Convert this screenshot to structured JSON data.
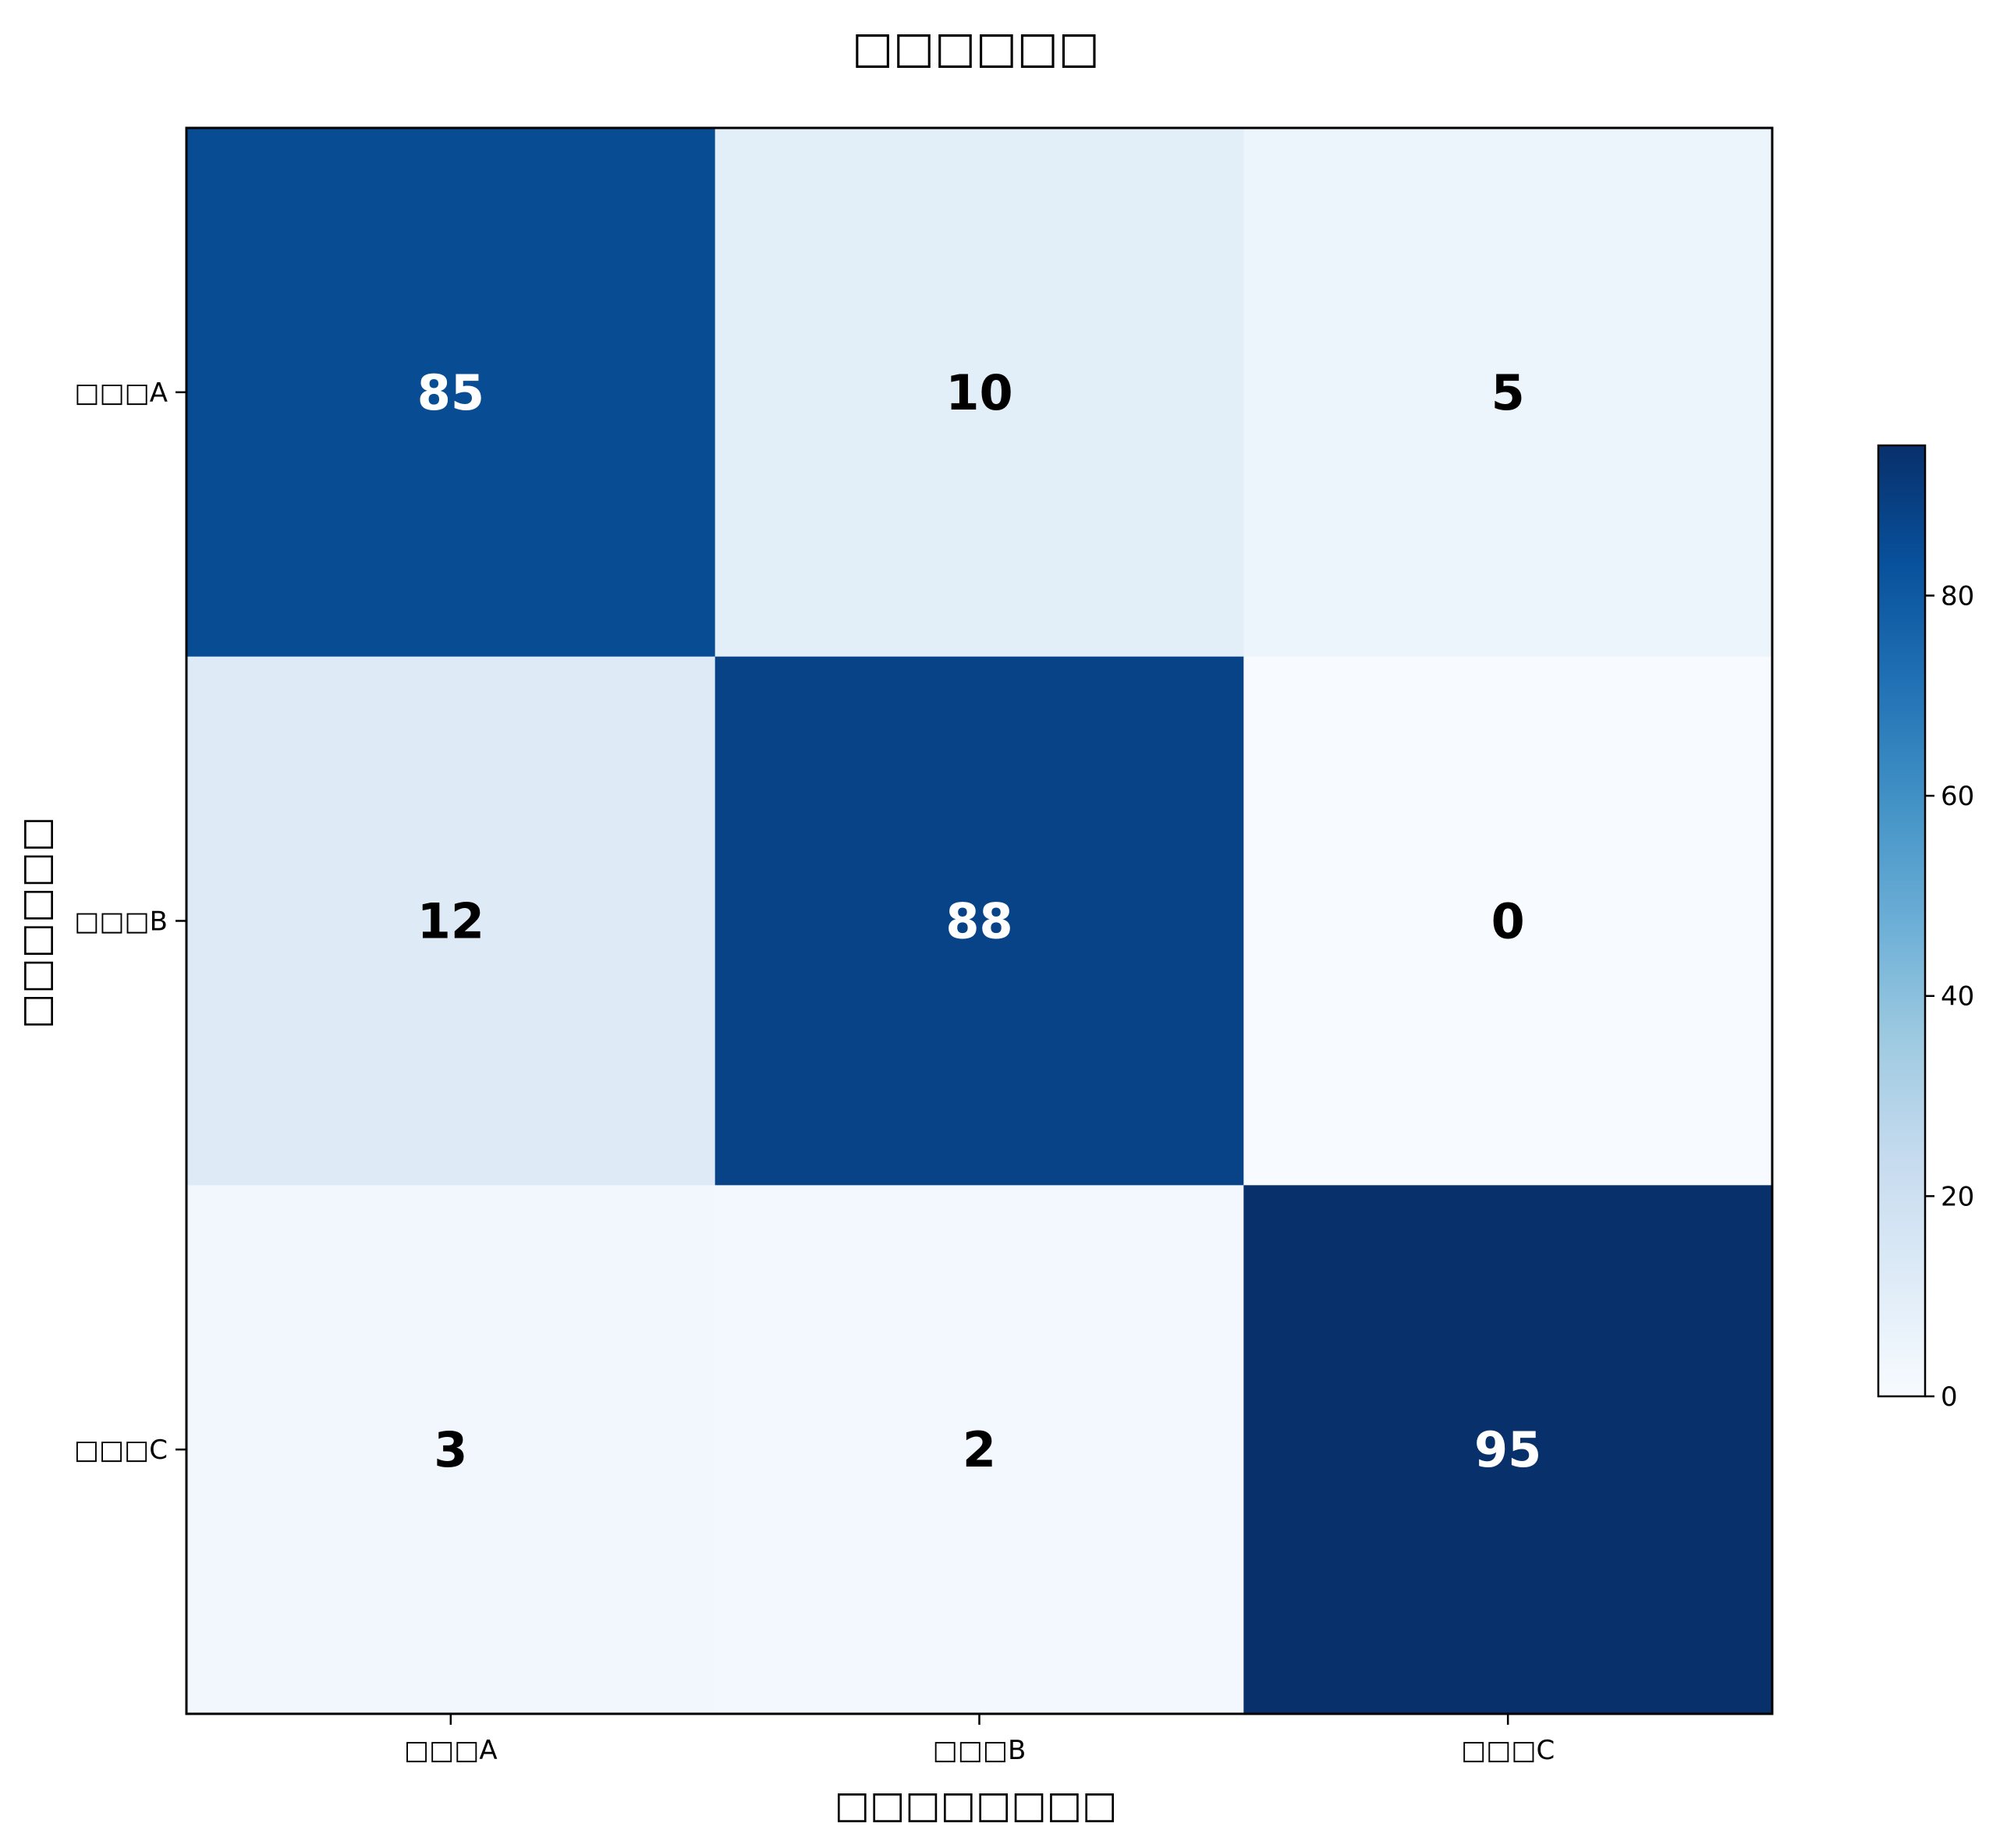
{
  "chart_data": {
    "type": "heatmap",
    "title": "□□□□□□",
    "xlabel": "□□□□□□□□",
    "ylabel": "□□□□□□",
    "x_categories": [
      "□□□A",
      "□□□B",
      "□□□C"
    ],
    "y_categories": [
      "□□□A",
      "□□□B",
      "□□□C"
    ],
    "values": [
      [
        85,
        10,
        5
      ],
      [
        12,
        88,
        0
      ],
      [
        3,
        2,
        95
      ]
    ],
    "colormap": "Blues",
    "vmin": 0,
    "vmax": 95,
    "colorbar_ticks": [
      0,
      20,
      40,
      60,
      80
    ],
    "colorbar_tick_labels": [
      "0",
      "20",
      "40",
      "60",
      "80"
    ],
    "grid": false,
    "colorbar_position": "right"
  }
}
